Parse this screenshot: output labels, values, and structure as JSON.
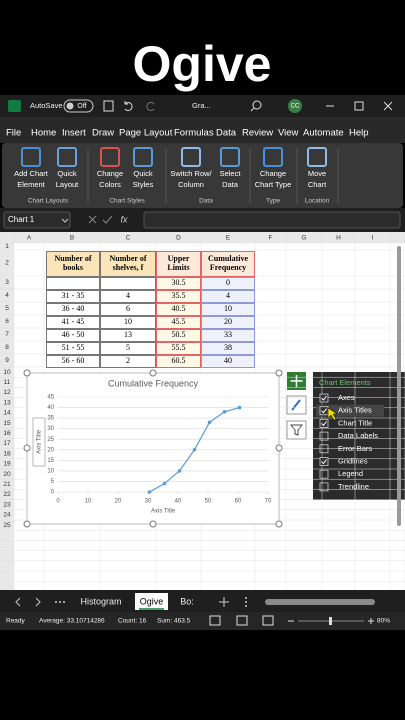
{
  "title": "Ogive",
  "title_bar": {
    "autosave": "AutoSave",
    "toggle": "Off",
    "file_name": "Gra...",
    "avatar": "CC"
  },
  "ribbon_tabs": [
    "File",
    "Home",
    "Insert",
    "Draw",
    "Page Layout",
    "Formulas",
    "Data",
    "Review",
    "View",
    "Automate",
    "Help"
  ],
  "ribbon_groups": [
    {
      "label": "Chart Layouts",
      "buttons": [
        [
          "Add Chart",
          "Element"
        ],
        [
          "Quick",
          "Layout"
        ]
      ]
    },
    {
      "label": "Chart Styles",
      "buttons": [
        [
          "Change",
          "Colors"
        ],
        [
          "Quick",
          "Styles"
        ]
      ]
    },
    {
      "label": "Data",
      "buttons": [
        [
          "Switch Row/",
          "Column"
        ],
        [
          "Select",
          "Data"
        ]
      ]
    },
    {
      "label": "Type",
      "buttons": [
        [
          "Change",
          "Chart Type"
        ]
      ]
    },
    {
      "label": "Location",
      "buttons": [
        [
          "Move",
          "Chart"
        ]
      ]
    }
  ],
  "name_box": "Chart 1",
  "formula_label": "fx",
  "columns": [
    "A",
    "B",
    "C",
    "D",
    "E",
    "F",
    "G",
    "H",
    "I"
  ],
  "rows": [
    1,
    2,
    3,
    4,
    5,
    6,
    7,
    8,
    9,
    10,
    11,
    12,
    13,
    14,
    15,
    16,
    17,
    18,
    19,
    20,
    21,
    22,
    23,
    24,
    25
  ],
  "table": {
    "header": [
      "Number of books",
      "Number of shelves, f",
      "Upper Limits",
      "Cumulative Frequency"
    ],
    "rows": [
      [
        null,
        null,
        30.5,
        0
      ],
      [
        "31 - 35",
        4,
        35.5,
        4
      ],
      [
        "36 - 40",
        6,
        40.5,
        10
      ],
      [
        "41 - 45",
        10,
        45.5,
        20
      ],
      [
        "46 - 50",
        13,
        50.5,
        33
      ],
      [
        "51 - 55",
        5,
        55.5,
        38
      ],
      [
        "56 - 60",
        2,
        60.5,
        40
      ]
    ]
  },
  "chart_data": {
    "type": "line",
    "title": "Cumulative Frequency",
    "x_label": "Axis Title",
    "y_label": "Axis Title",
    "x": [
      30.5,
      35.5,
      40.5,
      45.5,
      50.5,
      55.5,
      60.5
    ],
    "values": [
      0,
      4,
      10,
      20,
      33,
      38,
      40
    ],
    "color": "#5b9bd5",
    "xlim": [
      0,
      70
    ],
    "xticks": [
      0,
      10,
      20,
      30,
      40,
      50,
      60,
      70
    ],
    "ylim": [
      0,
      45
    ],
    "yticks": [
      0,
      5,
      10,
      15,
      20,
      25,
      30,
      35,
      40,
      45
    ],
    "grid": true
  },
  "chart_elements": {
    "title": "Chart Elements",
    "items": [
      {
        "label": "Axes",
        "checked": true
      },
      {
        "label": "Axis Titles",
        "checked": true
      },
      {
        "label": "Chart Title",
        "checked": true
      },
      {
        "label": "Data Labels",
        "checked": false
      },
      {
        "label": "Error Bars",
        "checked": false
      },
      {
        "label": "Gridlines",
        "checked": true
      },
      {
        "label": "Legend",
        "checked": false
      },
      {
        "label": "Trendline",
        "checked": false
      }
    ]
  },
  "sheet_tabs": [
    {
      "name": "Histogram",
      "active": false
    },
    {
      "name": "Ogive",
      "active": true
    },
    {
      "name": "Bo:",
      "active": false
    }
  ],
  "status_bar": {
    "mode": "Ready",
    "average": "Average: 33.10714286",
    "count": "Count: 16",
    "sum": "Sum: 463.5",
    "zoom": "80%"
  }
}
